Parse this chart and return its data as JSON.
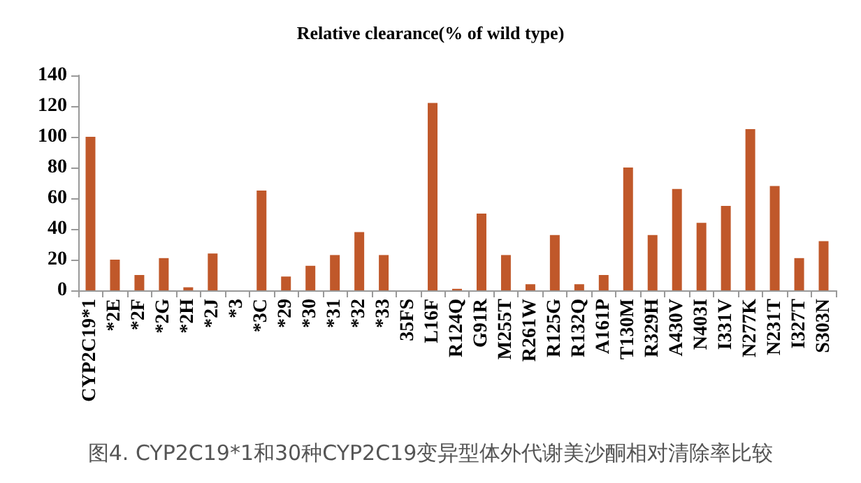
{
  "chart_data": {
    "type": "bar",
    "title": "Relative clearance(% of wild type)",
    "categories": [
      "CYP2C19*1",
      "*2E",
      "*2F",
      "*2G",
      "*2H",
      "*2J",
      "*3",
      "*3C",
      "*29",
      "*30",
      "*31",
      "*32",
      "*33",
      "35FS",
      "L16F",
      "R124Q",
      "G91R",
      "M255T",
      "R261W",
      "R125G",
      "R132Q",
      "A161P",
      "T130M",
      "R329H",
      "A430V",
      "N403I",
      "I331V",
      "N277K",
      "N231T",
      "I327T",
      "S303N"
    ],
    "values": [
      100,
      20,
      10,
      21,
      2,
      24,
      0,
      65,
      9,
      16,
      23,
      38,
      23,
      0,
      122,
      1,
      50,
      23,
      4,
      36,
      4,
      10,
      80,
      36,
      66,
      44,
      55,
      105,
      68,
      21,
      32
    ],
    "color": "#c0582a",
    "ylim": [
      0,
      140
    ],
    "yticks": [
      0,
      20,
      40,
      60,
      80,
      100,
      120,
      140
    ],
    "grid": false,
    "annotations": [
      "图4. CYP2C19*1和30种CYP2C19变异型体外代谢美沙酮相对清除率比较"
    ]
  }
}
